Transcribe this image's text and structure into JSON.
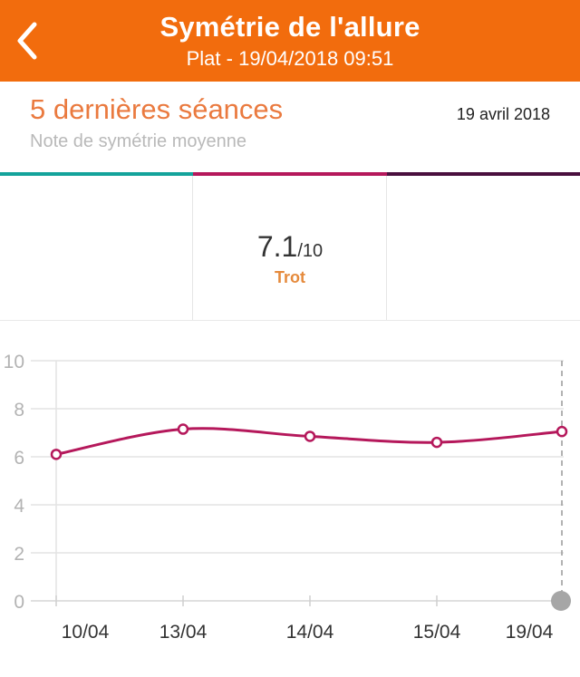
{
  "header": {
    "title": "Symétrie de l'allure",
    "subtitle": "Plat - 19/04/2018 09:51",
    "background": "#f26c0d"
  },
  "section": {
    "title": "5 dernières séances",
    "subtitle": "Note de symétrie moyenne",
    "date": "19 avril 2018"
  },
  "tabs": [
    {
      "color": "#14a39b",
      "score": "",
      "max": "",
      "label": ""
    },
    {
      "color": "#b5185b",
      "score": "7.1",
      "max": "/10",
      "label": "Trot"
    },
    {
      "color": "#4a0f3e",
      "score": "",
      "max": "",
      "label": ""
    }
  ],
  "chart_data": {
    "type": "line",
    "title": "",
    "xlabel": "",
    "ylabel": "",
    "categories": [
      "10/04",
      "13/04",
      "14/04",
      "15/04",
      "19/04"
    ],
    "yticks": [
      0,
      2,
      4,
      6,
      8,
      10
    ],
    "ylim": [
      0,
      10
    ],
    "grid": true,
    "selected_index": 4,
    "series": [
      {
        "values": [
          6.1,
          7.15,
          6.85,
          6.6,
          7.05
        ],
        "color": "#b5185b"
      }
    ]
  }
}
